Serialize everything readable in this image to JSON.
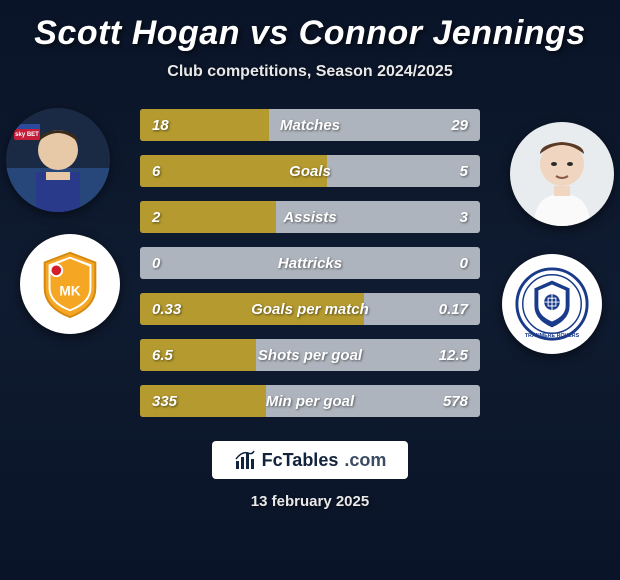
{
  "title": "Scott Hogan vs Connor Jennings",
  "subtitle": "Club competitions, Season 2024/2025",
  "date": "13 february 2025",
  "brand": {
    "name": "FcTables",
    "suffix": ".com"
  },
  "colors": {
    "bar_fill": "#b49a2f",
    "bar_bg": "#aeb4bd",
    "background_top": "#0a1428",
    "text": "#ffffff"
  },
  "player1": {
    "name": "Scott Hogan"
  },
  "player2": {
    "name": "Connor Jennings"
  },
  "rows": [
    {
      "label": "Matches",
      "left": "18",
      "right": "29",
      "fill_pct": 38
    },
    {
      "label": "Goals",
      "left": "6",
      "right": "5",
      "fill_pct": 55
    },
    {
      "label": "Assists",
      "left": "2",
      "right": "3",
      "fill_pct": 40
    },
    {
      "label": "Hattricks",
      "left": "0",
      "right": "0",
      "fill_pct": 0
    },
    {
      "label": "Goals per match",
      "left": "0.33",
      "right": "0.17",
      "fill_pct": 66
    },
    {
      "label": "Shots per goal",
      "left": "6.5",
      "right": "12.5",
      "fill_pct": 34
    },
    {
      "label": "Min per goal",
      "left": "335",
      "right": "578",
      "fill_pct": 37
    }
  ]
}
